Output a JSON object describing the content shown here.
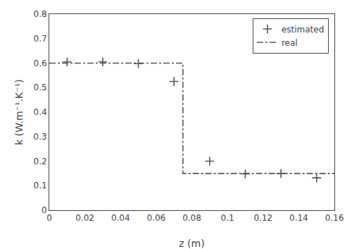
{
  "chart_data": {
    "type": "line",
    "xlabel": "z (m)",
    "ylabel": "k (W.m⁻¹.K⁻¹)",
    "series": [
      {
        "name": "real",
        "type": "line",
        "line_style": "dashdot",
        "color": "#555555",
        "x": [
          0.0,
          0.075,
          0.075,
          0.16
        ],
        "values": [
          0.6,
          0.6,
          0.15,
          0.15
        ]
      },
      {
        "name": "estimated",
        "type": "scatter",
        "marker": "cross",
        "color": "#555555",
        "x": [
          0.01,
          0.03,
          0.05,
          0.07,
          0.09,
          0.11,
          0.13,
          0.15
        ],
        "values": [
          0.605,
          0.605,
          0.598,
          0.525,
          0.2,
          0.148,
          0.15,
          0.132
        ]
      }
    ],
    "xlim": [
      0,
      0.16
    ],
    "ylim": [
      0,
      0.8
    ],
    "xticks": [
      0,
      0.02,
      0.04,
      0.06,
      0.08,
      0.1,
      0.12,
      0.14,
      0.16
    ],
    "yticks": [
      0,
      0.1,
      0.2,
      0.3,
      0.4,
      0.5,
      0.6,
      0.7,
      0.8
    ],
    "grid": false,
    "legend": "upper right"
  }
}
